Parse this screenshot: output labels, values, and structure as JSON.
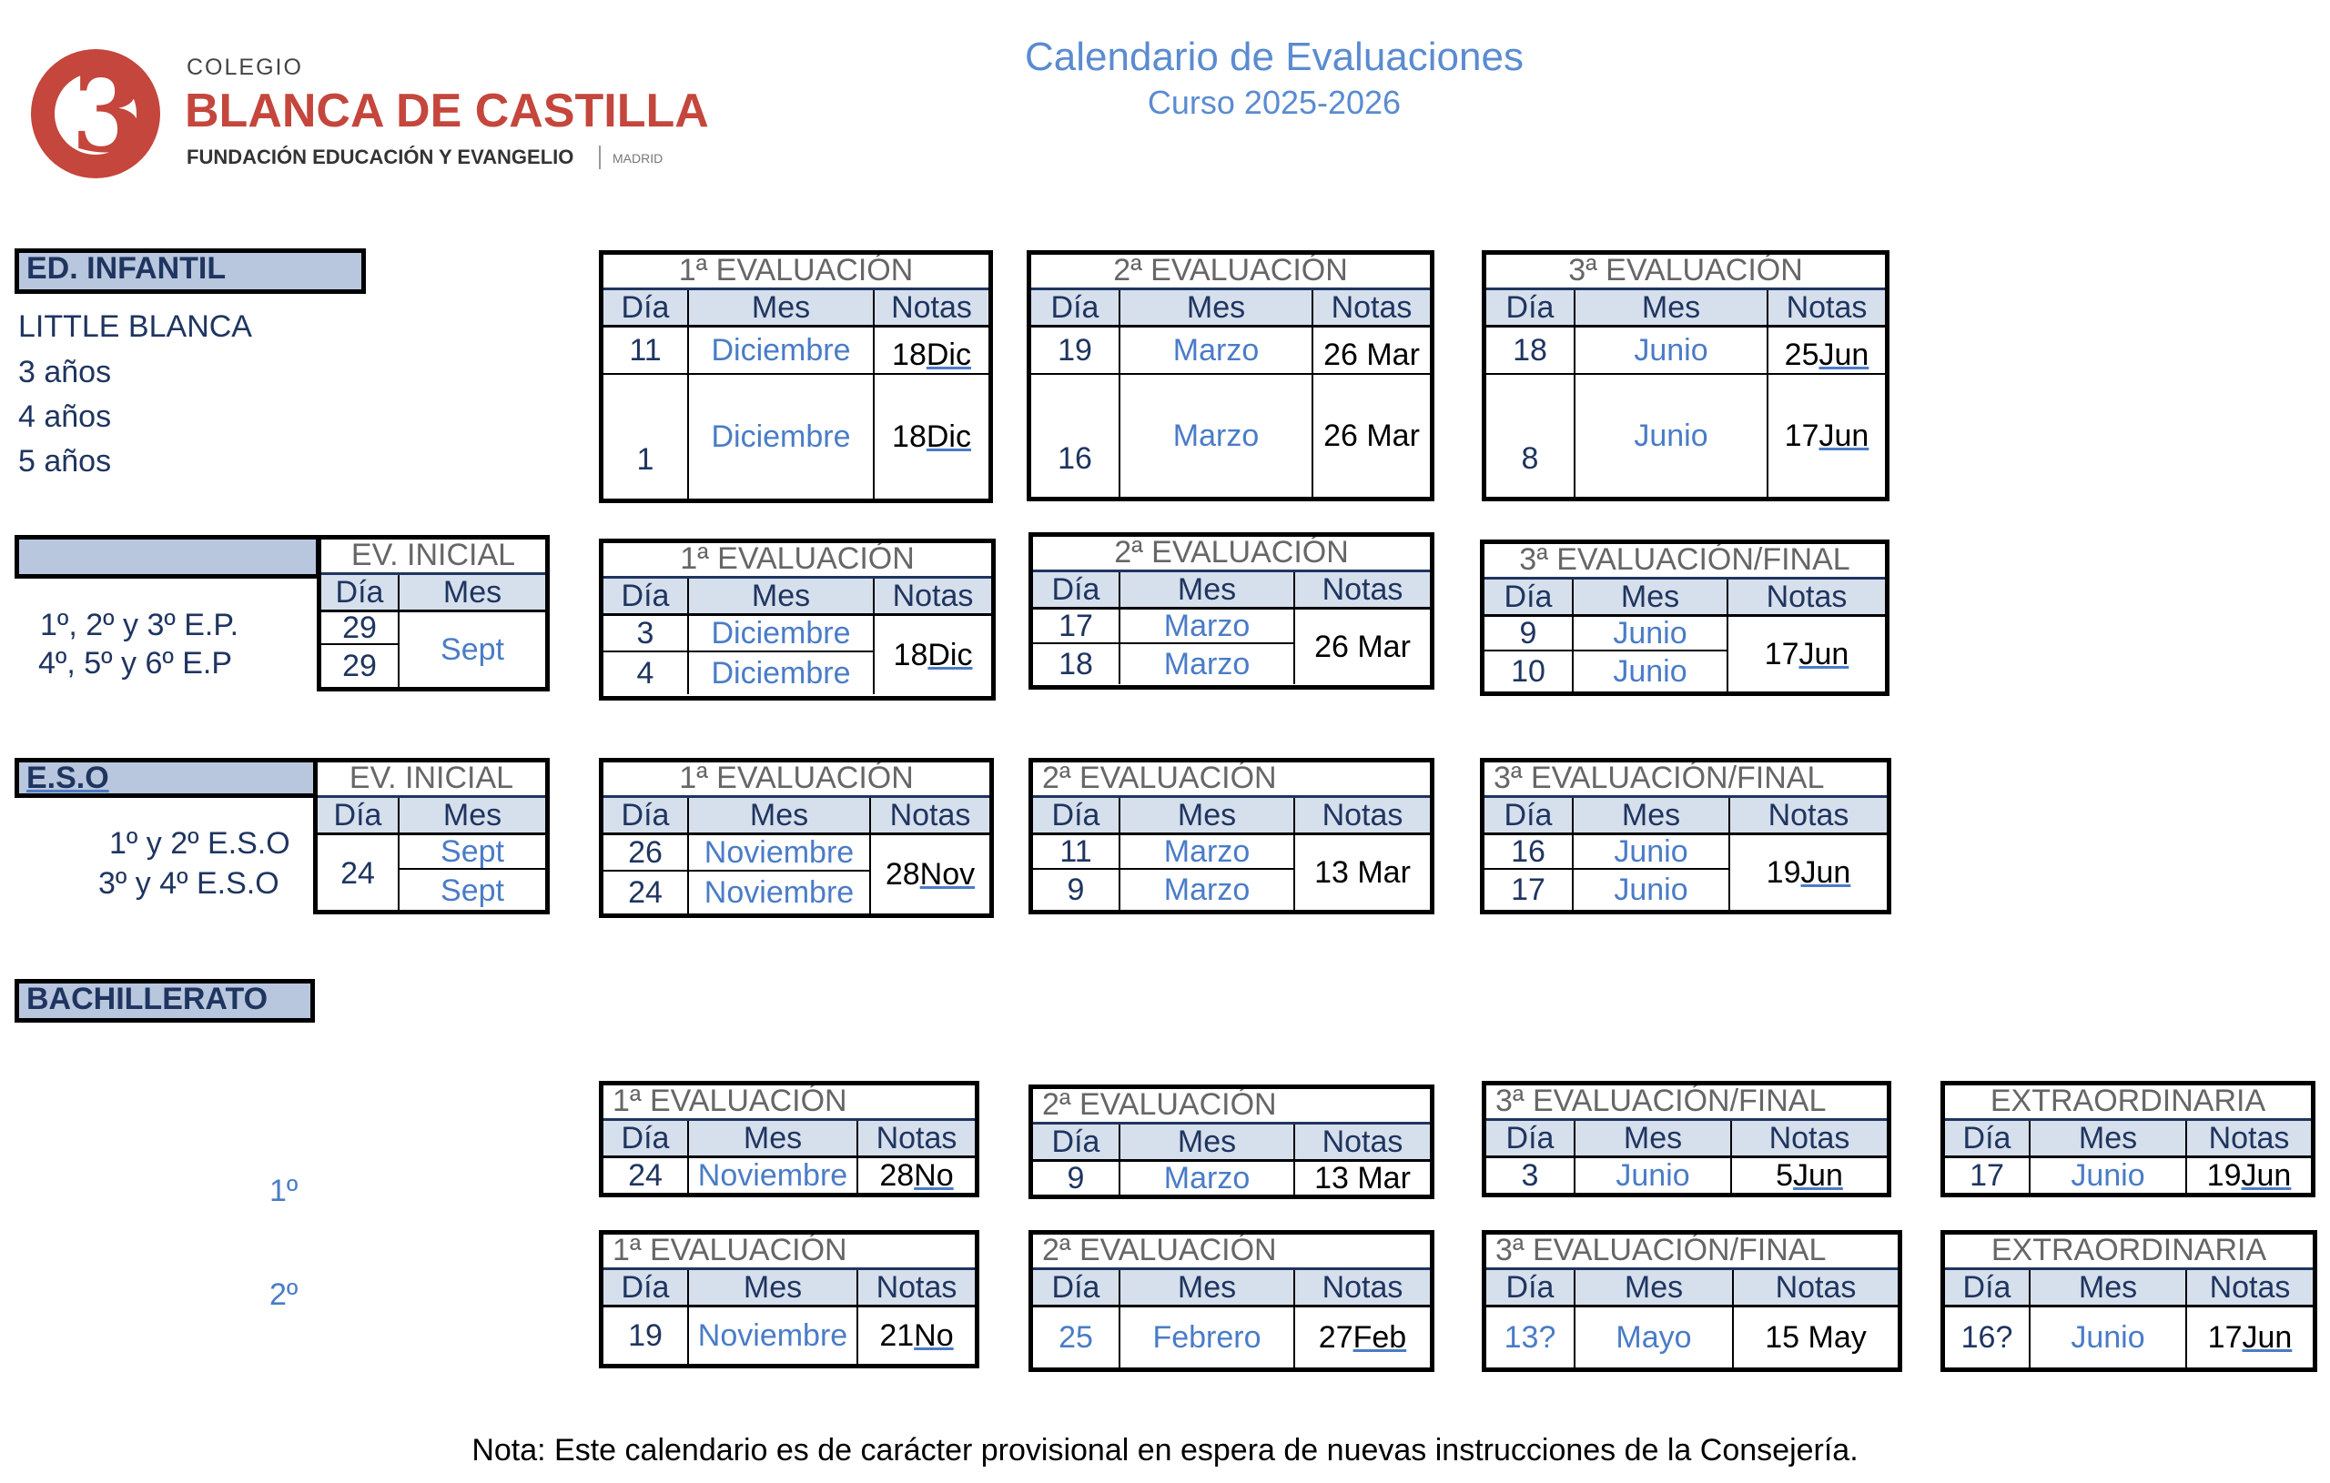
{
  "logo": {
    "colegio": "COLEGIO",
    "name": "BLANCA DE CASTILLA",
    "fundacion": "FUNDACIÓN EDUCACIÓN Y EVANGELIO",
    "madrid": "MADRID"
  },
  "title": "Calendario de Evaluaciones",
  "subtitle": "Curso 2025-2026",
  "headers": {
    "dia": "Día",
    "mes": "Mes",
    "notas": "Notas"
  },
  "infantil": {
    "label": "ED. INFANTIL",
    "levels": [
      "LITTLE BLANCA",
      "3 años",
      "4 años",
      "5 años"
    ],
    "ev1": {
      "title": "1ª EVALUACIÓN",
      "rows": [
        {
          "dia": "11",
          "mes": "Diciembre",
          "nota_d": "18 ",
          "nota_m": "Dic"
        },
        {
          "dia": "1",
          "mes": "Diciembre",
          "nota_d": "18 ",
          "nota_m": "Dic"
        }
      ]
    },
    "ev2": {
      "title": "2ª EVALUACIÓN",
      "rows": [
        {
          "dia": "19",
          "mes": "Marzo",
          "nota_d": "26 Mar",
          "nota_m": ""
        },
        {
          "dia": "16",
          "mes": "Marzo",
          "nota_d": "26 Mar",
          "nota_m": ""
        }
      ]
    },
    "ev3": {
      "title": "3ª EVALUACIÓN",
      "rows": [
        {
          "dia": "18",
          "mes": "Junio",
          "nota_d": "25 ",
          "nota_m": "Jun"
        },
        {
          "dia": "8",
          "mes": "Junio",
          "nota_d": "17 ",
          "nota_m": "Jun"
        }
      ]
    }
  },
  "primaria": {
    "levels": [
      "1º, 2º y 3º E.P.",
      "4º, 5º y 6º E.P"
    ],
    "inicial": {
      "title": "EV. INICIAL",
      "dias": [
        "29",
        "29"
      ],
      "mes": "Sept"
    },
    "ev1": {
      "title": "1ª EVALUACIÓN",
      "dias": [
        "3",
        "4"
      ],
      "meses": [
        "Diciembre",
        "Diciembre"
      ],
      "nota_d": "18 ",
      "nota_m": "Dic"
    },
    "ev2": {
      "title": "2ª EVALUACIÓN",
      "dias": [
        "17",
        "18"
      ],
      "meses": [
        "Marzo",
        "Marzo"
      ],
      "nota_d": "26 Mar",
      "nota_m": ""
    },
    "ev3": {
      "title": "3ª EVALUACIÓN/FINAL",
      "dias": [
        "9",
        "10"
      ],
      "meses": [
        "Junio",
        "Junio"
      ],
      "nota_d": "17 ",
      "nota_m": "Jun"
    }
  },
  "eso": {
    "label": "E.S.O",
    "levels": [
      "1º y 2º E.S.O",
      "3º y 4º  E.S.O"
    ],
    "inicial": {
      "title": "EV. INICIAL",
      "dia": "24",
      "meses": [
        "Sept",
        "Sept"
      ]
    },
    "ev1": {
      "title": "1ª EVALUACIÓN",
      "dias": [
        "26",
        "24"
      ],
      "meses": [
        "Noviembre",
        "Noviembre"
      ],
      "nota_d": "28 ",
      "nota_m": "Nov"
    },
    "ev2": {
      "title": "2ª EVALUACIÓN",
      "dias": [
        "11",
        "9"
      ],
      "meses": [
        "Marzo",
        "Marzo"
      ],
      "nota_d": "13 Mar",
      "nota_m": ""
    },
    "ev3": {
      "title": "3ª EVALUACIÓN/FINAL",
      "dias": [
        "16",
        "17"
      ],
      "meses": [
        "Junio",
        "Junio"
      ],
      "nota_d": "19 ",
      "nota_m": "Jun"
    }
  },
  "bachillerato": {
    "label": "BACHILLERATO",
    "b1": {
      "level": "1º",
      "ev1": {
        "title": "1ª EVALUACIÓN",
        "dia": "24",
        "mes": "Noviembre",
        "nota_d": "28 ",
        "nota_m": "No"
      },
      "ev2": {
        "title": "2ª EVALUACIÓN",
        "dia": "9",
        "mes": "Marzo",
        "nota_d": "13 Mar",
        "nota_m": ""
      },
      "ev3": {
        "title": "3ª EVALUACIÓN/FINAL",
        "dia": "3",
        "mes": "Junio",
        "nota_d": "5 ",
        "nota_m": "Jun"
      },
      "ext": {
        "title": "EXTRAORDINARIA",
        "dia": "17",
        "mes": "Junio",
        "nota_d": "19 ",
        "nota_m": "Jun"
      }
    },
    "b2": {
      "level": "2º",
      "ev1": {
        "title": "1ª EVALUACIÓN",
        "dia": "19",
        "mes": "Noviembre",
        "nota_d": "21 ",
        "nota_m": "No"
      },
      "ev2": {
        "title": "2ª EVALUACIÓN",
        "dia": "25",
        "mes": "Febrero",
        "nota_d": "27 ",
        "nota_m": "Feb"
      },
      "ev3": {
        "title": "3ª EVALUACIÓN/FINAL",
        "dia": "13?",
        "mes": "Mayo",
        "nota_d": "15 May",
        "nota_m": ""
      },
      "ext": {
        "title": "EXTRAORDINARIA",
        "dia": "16?",
        "mes": "Junio",
        "nota_d": "17 ",
        "nota_m": "Jun"
      }
    }
  },
  "note": "Nota: Este calendario es de carácter provisional en espera de nuevas instrucciones de la Consejería."
}
